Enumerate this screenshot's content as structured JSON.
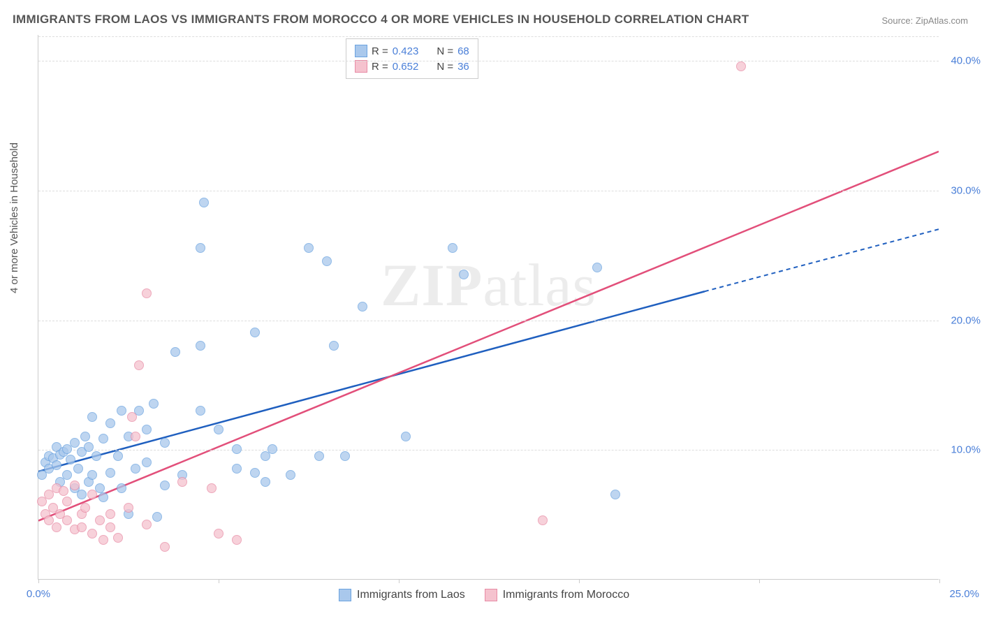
{
  "title": "IMMIGRANTS FROM LAOS VS IMMIGRANTS FROM MOROCCO 4 OR MORE VEHICLES IN HOUSEHOLD CORRELATION CHART",
  "source": "Source: ZipAtlas.com",
  "ylabel": "4 or more Vehicles in Household",
  "watermark_a": "ZIP",
  "watermark_b": "atlas",
  "chart": {
    "type": "scatter",
    "xlim": [
      0,
      25
    ],
    "ylim": [
      0,
      42
    ],
    "xtick_positions": [
      0,
      5,
      10,
      15,
      20,
      25
    ],
    "xtick_labels": {
      "0": "0.0%",
      "25": "25.0%"
    },
    "ytick_positions": [
      10,
      20,
      30,
      40
    ],
    "ytick_labels": {
      "10": "10.0%",
      "20": "20.0%",
      "30": "30.0%",
      "40": "40.0%"
    },
    "grid_color": "#dddddd",
    "background_color": "#ffffff",
    "axis_color": "#cccccc"
  },
  "series": [
    {
      "name": "Immigrants from Laos",
      "key": "laos",
      "fill": "#a9c8ec",
      "stroke": "#6ba3e0",
      "line_color": "#1f5fbf",
      "R": "0.423",
      "N": "68",
      "trend": {
        "x1": 0,
        "y1": 8.3,
        "x2_solid": 18.5,
        "y2_solid": 22.2,
        "x2_dash": 25,
        "y2_dash": 27.0
      },
      "points": [
        [
          0.1,
          8.0
        ],
        [
          0.2,
          9.0
        ],
        [
          0.3,
          8.5
        ],
        [
          0.3,
          9.5
        ],
        [
          0.4,
          9.3
        ],
        [
          0.5,
          10.2
        ],
        [
          0.5,
          8.8
        ],
        [
          0.6,
          9.6
        ],
        [
          0.6,
          7.5
        ],
        [
          0.7,
          9.8
        ],
        [
          0.8,
          10.0
        ],
        [
          0.8,
          8.0
        ],
        [
          0.9,
          9.2
        ],
        [
          1.0,
          10.5
        ],
        [
          1.0,
          7.0
        ],
        [
          1.1,
          8.5
        ],
        [
          1.2,
          9.8
        ],
        [
          1.2,
          6.5
        ],
        [
          1.3,
          11.0
        ],
        [
          1.4,
          7.5
        ],
        [
          1.4,
          10.2
        ],
        [
          1.5,
          8.0
        ],
        [
          1.5,
          12.5
        ],
        [
          1.6,
          9.5
        ],
        [
          1.7,
          7.0
        ],
        [
          1.8,
          10.8
        ],
        [
          1.8,
          6.3
        ],
        [
          2.0,
          8.2
        ],
        [
          2.0,
          12.0
        ],
        [
          2.2,
          9.5
        ],
        [
          2.3,
          13.0
        ],
        [
          2.3,
          7.0
        ],
        [
          2.5,
          11.0
        ],
        [
          2.5,
          5.0
        ],
        [
          2.7,
          8.5
        ],
        [
          2.8,
          13.0
        ],
        [
          3.0,
          9.0
        ],
        [
          3.0,
          11.5
        ],
        [
          3.2,
          13.5
        ],
        [
          3.3,
          4.8
        ],
        [
          3.5,
          10.5
        ],
        [
          3.8,
          17.5
        ],
        [
          3.5,
          7.2
        ],
        [
          4.5,
          18.0
        ],
        [
          4.0,
          8.0
        ],
        [
          4.5,
          13.0
        ],
        [
          4.6,
          29.0
        ],
        [
          4.5,
          25.5
        ],
        [
          5.0,
          11.5
        ],
        [
          5.5,
          8.5
        ],
        [
          5.5,
          10.0
        ],
        [
          6.0,
          8.2
        ],
        [
          6.0,
          19.0
        ],
        [
          6.3,
          7.5
        ],
        [
          6.3,
          9.5
        ],
        [
          6.5,
          10.0
        ],
        [
          7.0,
          8.0
        ],
        [
          7.5,
          25.5
        ],
        [
          7.8,
          9.5
        ],
        [
          8.0,
          24.5
        ],
        [
          8.2,
          18.0
        ],
        [
          8.5,
          9.5
        ],
        [
          9.0,
          21.0
        ],
        [
          10.2,
          11.0
        ],
        [
          11.5,
          25.5
        ],
        [
          11.8,
          23.5
        ],
        [
          15.5,
          24.0
        ],
        [
          16.0,
          6.5
        ]
      ]
    },
    {
      "name": "Immigrants from Morocco",
      "key": "morocco",
      "fill": "#f5c2ce",
      "stroke": "#e88ba5",
      "line_color": "#e24f7a",
      "R": "0.652",
      "N": "36",
      "trend": {
        "x1": 0,
        "y1": 4.5,
        "x2_solid": 25,
        "y2_solid": 33.0
      },
      "points": [
        [
          0.1,
          6.0
        ],
        [
          0.2,
          5.0
        ],
        [
          0.3,
          6.5
        ],
        [
          0.3,
          4.5
        ],
        [
          0.4,
          5.5
        ],
        [
          0.5,
          7.0
        ],
        [
          0.5,
          4.0
        ],
        [
          0.6,
          5.0
        ],
        [
          0.7,
          6.8
        ],
        [
          0.8,
          4.5
        ],
        [
          0.8,
          6.0
        ],
        [
          1.0,
          3.8
        ],
        [
          1.0,
          7.2
        ],
        [
          1.2,
          5.0
        ],
        [
          1.2,
          4.0
        ],
        [
          1.3,
          5.5
        ],
        [
          1.5,
          3.5
        ],
        [
          1.5,
          6.5
        ],
        [
          1.7,
          4.5
        ],
        [
          1.8,
          3.0
        ],
        [
          2.0,
          5.0
        ],
        [
          2.0,
          4.0
        ],
        [
          2.2,
          3.2
        ],
        [
          2.5,
          5.5
        ],
        [
          2.6,
          12.5
        ],
        [
          2.7,
          11.0
        ],
        [
          2.8,
          16.5
        ],
        [
          3.0,
          4.2
        ],
        [
          3.0,
          22.0
        ],
        [
          3.5,
          2.5
        ],
        [
          4.0,
          7.5
        ],
        [
          4.8,
          7.0
        ],
        [
          5.0,
          3.5
        ],
        [
          5.5,
          3.0
        ],
        [
          14.0,
          4.5
        ],
        [
          19.5,
          39.5
        ]
      ]
    }
  ],
  "legend_top_label_R": "R =",
  "legend_top_label_N": "N ="
}
